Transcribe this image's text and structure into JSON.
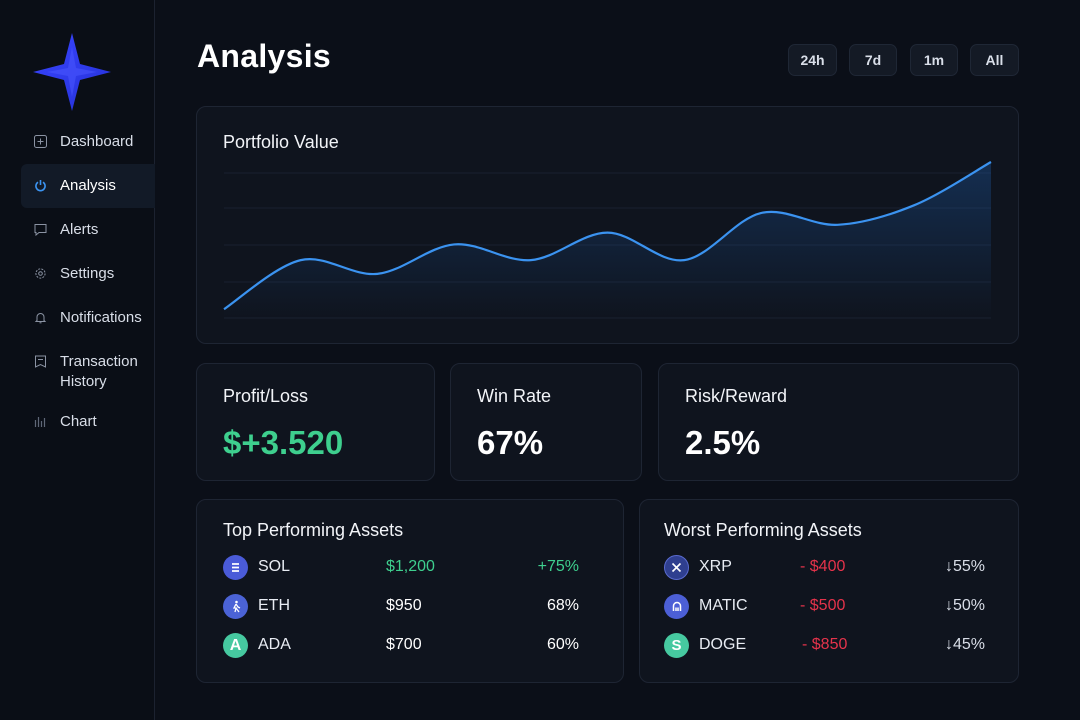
{
  "sidebar": {
    "items": [
      {
        "label": "Dashboard",
        "icon": "plus-square-icon"
      },
      {
        "label": "Analysis",
        "icon": "power-icon"
      },
      {
        "label": "Alerts",
        "icon": "message-icon"
      },
      {
        "label": "Settings",
        "icon": "gear-icon"
      },
      {
        "label": "Notifications",
        "icon": "bell-icon"
      },
      {
        "label": "Transaction History",
        "icon": "receipt-icon"
      },
      {
        "label": "Chart",
        "icon": "bar-chart-icon"
      }
    ],
    "active": "Analysis"
  },
  "header": {
    "title": "Analysis",
    "ranges": [
      "24h",
      "7d",
      "1m",
      "All"
    ]
  },
  "portfolio": {
    "title": "Portfolio Value",
    "line_color": "#3b93f0"
  },
  "chart_data": {
    "type": "area",
    "title": "Portfolio Value",
    "xlabel": "",
    "ylabel": "",
    "grid": true,
    "values": [
      5,
      30,
      23,
      38,
      30,
      44,
      30,
      54,
      48,
      58,
      80
    ]
  },
  "stats": {
    "profit_loss": {
      "label": "Profit/Loss",
      "value": "$+3.520",
      "color": "#3ecf8e"
    },
    "win_rate": {
      "label": "Win Rate",
      "value": "67%"
    },
    "risk_reward": {
      "label": "Risk/Reward",
      "value": "2.5%"
    }
  },
  "top_assets": {
    "title": "Top Performing Assets",
    "rows": [
      {
        "symbol": "SOL",
        "icon": "sol-icon",
        "value": "$1,200",
        "change": "+75%",
        "value_color": "#3ecf8e",
        "change_color": "#3ecf8e"
      },
      {
        "symbol": "ETH",
        "icon": "eth-icon",
        "value": "$950",
        "change": "68%",
        "value_color": "#ffffff",
        "change_color": "#ffffff"
      },
      {
        "symbol": "ADA",
        "icon": "ada-icon",
        "value": "$700",
        "change": "60%",
        "value_color": "#ffffff",
        "change_color": "#ffffff"
      }
    ]
  },
  "worst_assets": {
    "title": "Worst Performing Assets",
    "rows": [
      {
        "symbol": "XRP",
        "icon": "xrp-icon",
        "value": "- $400",
        "change": "↓55%",
        "value_color": "#e5334b"
      },
      {
        "symbol": "MATIC",
        "icon": "matic-icon",
        "value": "- $500",
        "change": "↓50%",
        "value_color": "#e5334b"
      },
      {
        "symbol": "DOGE",
        "icon": "doge-icon",
        "value": "- $850",
        "change": "↓45%",
        "value_color": "#e5334b"
      }
    ]
  }
}
